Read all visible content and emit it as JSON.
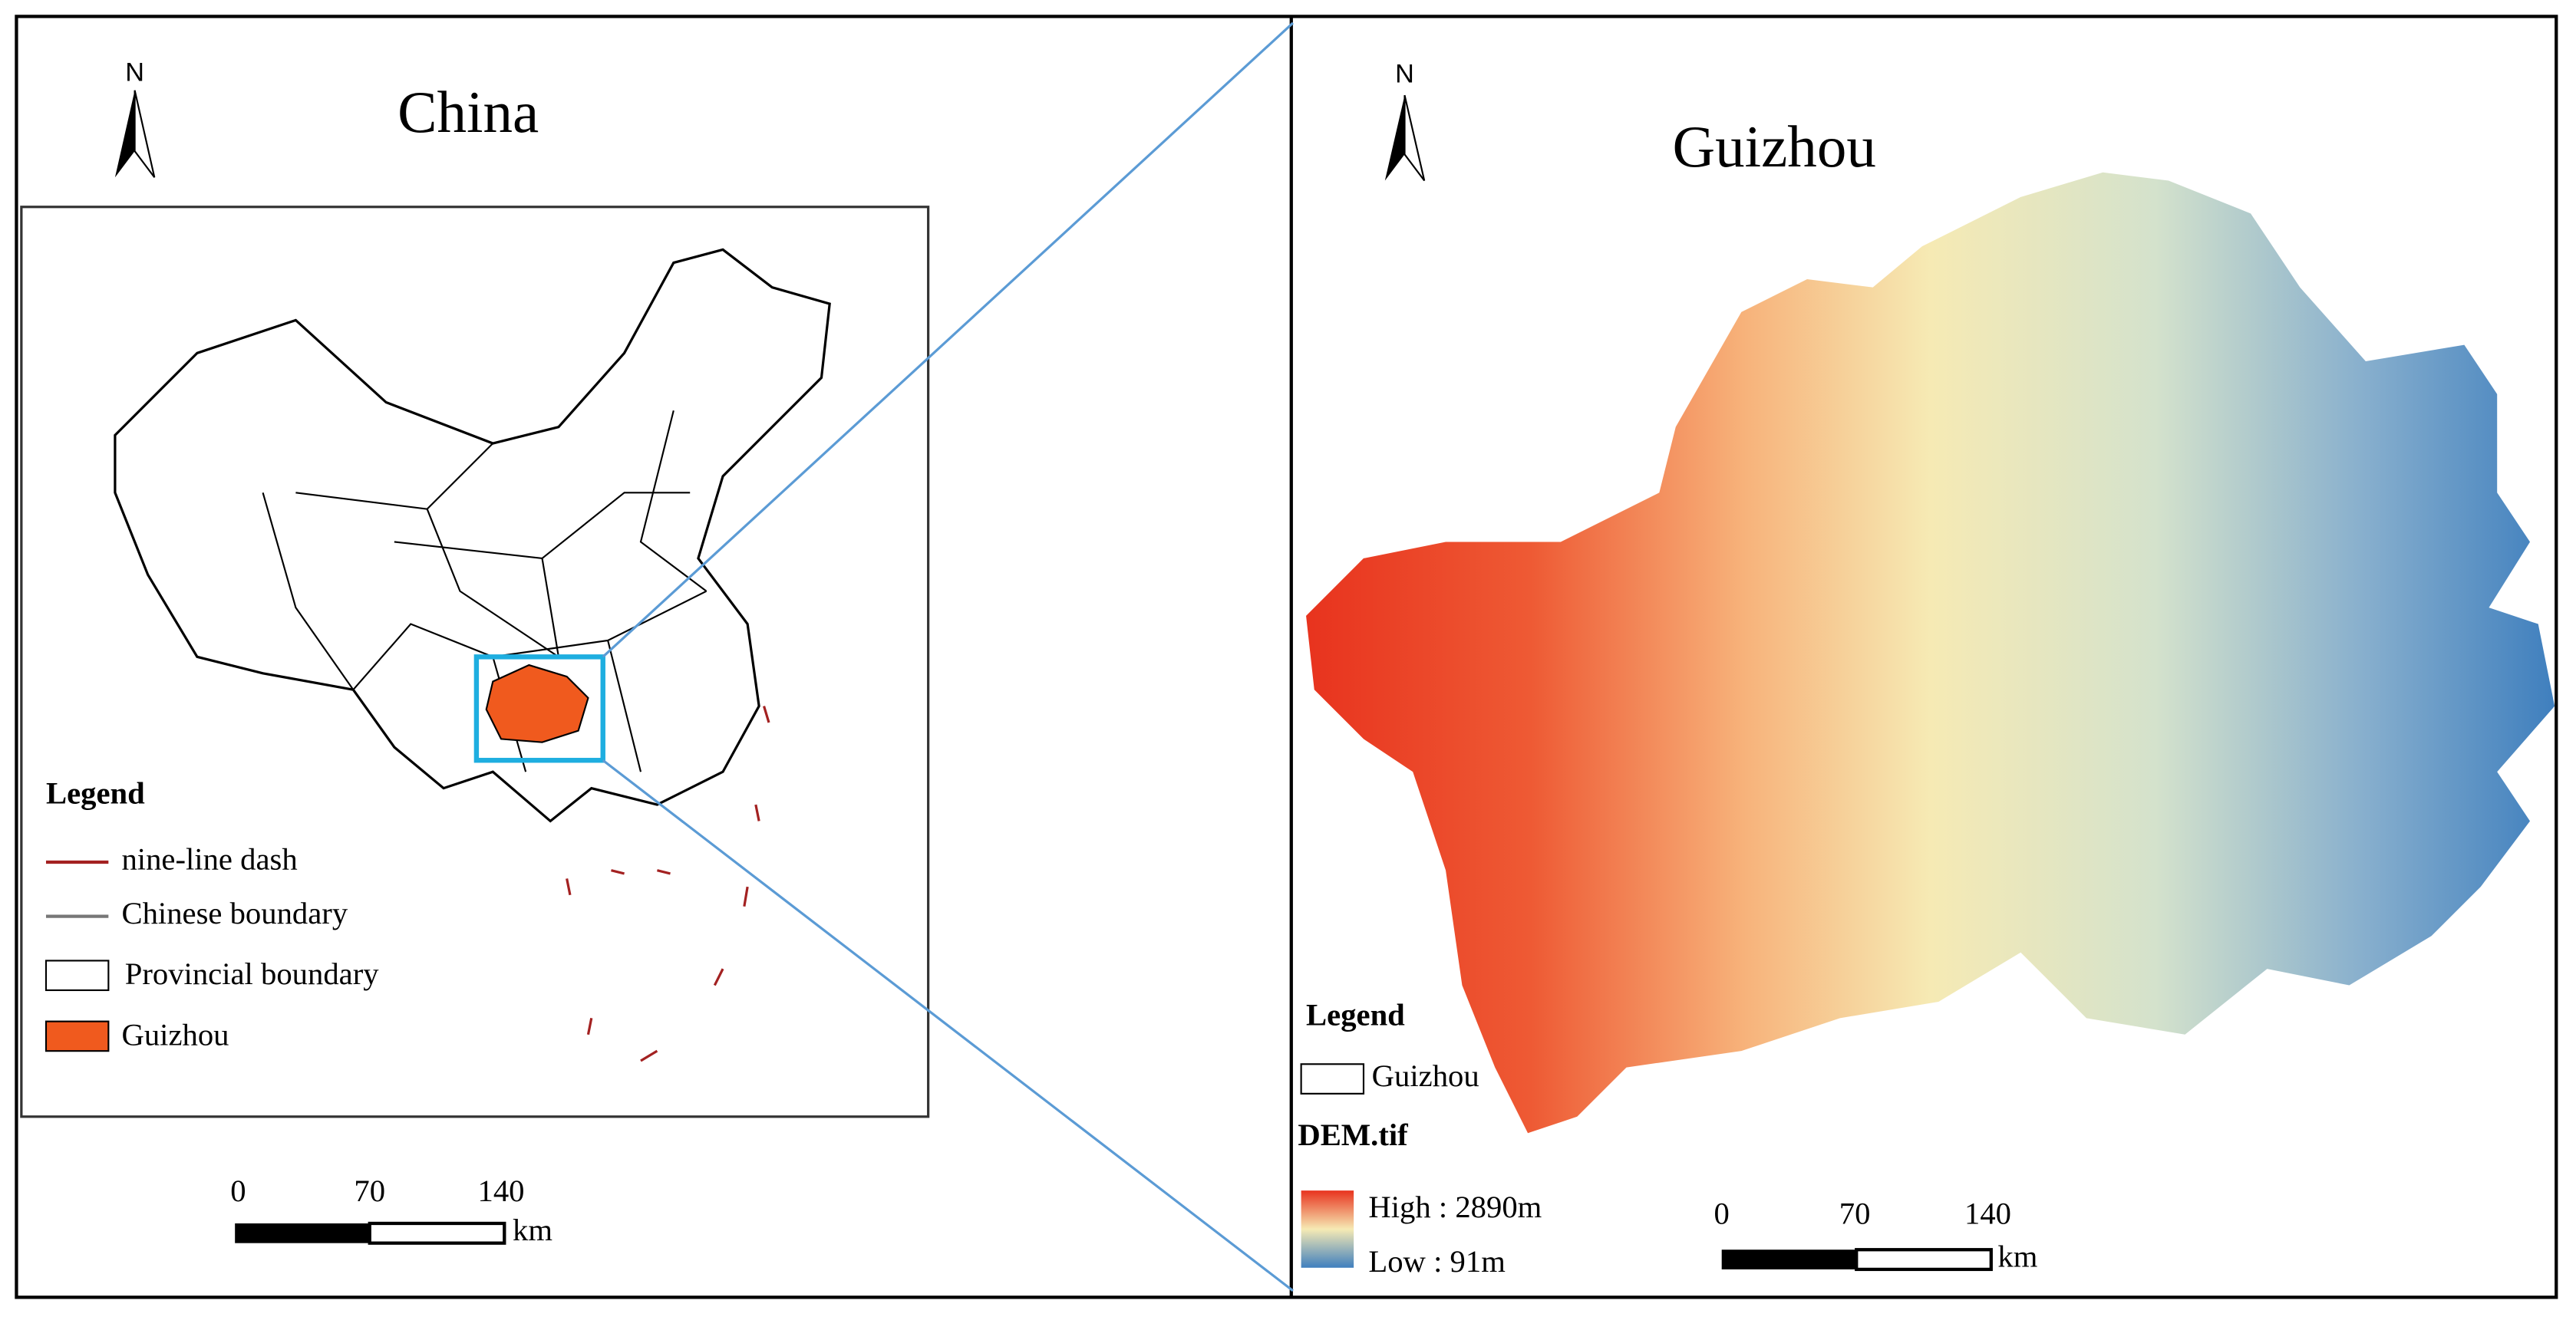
{
  "left_panel": {
    "north": "N",
    "title": "China",
    "legend": {
      "title": "Legend",
      "items": [
        "nine-line dash",
        "Chinese boundary",
        "Provincial boundary",
        "Guizhou"
      ]
    },
    "scale_bar": {
      "labels": [
        "0",
        "70",
        "140"
      ],
      "unit": "km"
    }
  },
  "right_panel": {
    "north": "N",
    "title": "Guizhou",
    "legend": {
      "title": "Legend",
      "boundary": "Guizhou",
      "raster_title": "DEM.tif",
      "high": "High : 2890m",
      "low": "Low : 91m"
    },
    "scale_bar": {
      "labels": [
        "0",
        "70",
        "140"
      ],
      "unit": "km"
    }
  }
}
